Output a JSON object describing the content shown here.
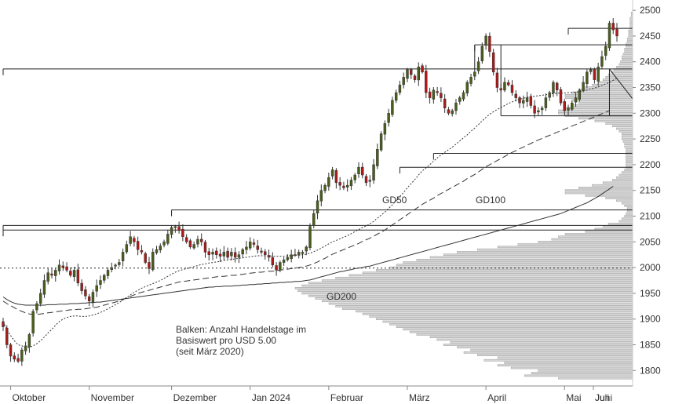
{
  "chart_data": {
    "type": "candlestick",
    "title": "",
    "xlabel": "",
    "ylabel": "",
    "ylim": [
      1770,
      2520
    ],
    "y_ticks": [
      1800,
      1850,
      1900,
      1950,
      2000,
      2050,
      2100,
      2150,
      2200,
      2250,
      2300,
      2350,
      2400,
      2450,
      2500
    ],
    "x_tick_labels": [
      "Oktober",
      "November",
      "Dezember",
      "Jan 2024",
      "Februar",
      "März",
      "April",
      "Mai",
      "Juni",
      "Juli"
    ],
    "grid": false,
    "moving_averages": [
      {
        "name": "GD50",
        "style": "dotted"
      },
      {
        "name": "GD100",
        "style": "dashed"
      },
      {
        "name": "GD200",
        "style": "solid"
      }
    ],
    "dotted_level": 1999,
    "resistance_levels": [
      2465,
      2433,
      2386,
      2222,
      2195,
      2112,
      2082,
      2073
    ],
    "support_zone": [
      2295,
      2386
    ],
    "annotation": {
      "line1": "Balken: Anzahl Handelstage im",
      "line2": "Basiswert pro USD 5.00",
      "line3": "(seit März 2020)"
    },
    "closes": [
      1885,
      1850,
      1828,
      1822,
      1818,
      1840,
      1848,
      1870,
      1915,
      1930,
      1950,
      1975,
      1990,
      1985,
      1995,
      2005,
      2000,
      1995,
      1985,
      1995,
      1970,
      1955,
      1945,
      1935,
      1952,
      1965,
      1975,
      1985,
      1995,
      2000,
      2005,
      2010,
      2030,
      2045,
      2060,
      2050,
      2035,
      2030,
      2010,
      1998,
      2030,
      2035,
      2042,
      2050,
      2065,
      2078,
      2080,
      2072,
      2060,
      2050,
      2040,
      2045,
      2055,
      2050,
      2030,
      2025,
      2030,
      2025,
      2022,
      2030,
      2020,
      2030,
      2020,
      2025,
      2035,
      2040,
      2050,
      2045,
      2035,
      2030,
      2025,
      2020,
      2005,
      1995,
      2010,
      2015,
      2020,
      2025,
      2025,
      2030,
      2030,
      2040,
      2080,
      2105,
      2130,
      2150,
      2160,
      2175,
      2190,
      2165,
      2160,
      2155,
      2160,
      2170,
      2180,
      2195,
      2180,
      2165,
      2170,
      2200,
      2230,
      2260,
      2280,
      2300,
      2325,
      2340,
      2355,
      2370,
      2385,
      2375,
      2365,
      2390,
      2380,
      2340,
      2330,
      2345,
      2340,
      2330,
      2310,
      2300,
      2305,
      2320,
      2330,
      2340,
      2360,
      2370,
      2380,
      2400,
      2430,
      2450,
      2420,
      2380,
      2350,
      2345,
      2360,
      2355,
      2340,
      2330,
      2320,
      2325,
      2330,
      2315,
      2300,
      2305,
      2310,
      2330,
      2340,
      2360,
      2345,
      2320,
      2305,
      2310,
      2320,
      2330,
      2345,
      2360,
      2380,
      2385,
      2365,
      2390,
      2410,
      2430,
      2475,
      2462,
      2450
    ],
    "gd50": [
      1895,
      1880,
      1868,
      1858,
      1850,
      1848,
      1845,
      1845,
      1848,
      1852,
      1858,
      1865,
      1873,
      1880,
      1888,
      1895,
      1900,
      1903,
      1905,
      1906,
      1906,
      1905,
      1905,
      1906,
      1908,
      1910,
      1913,
      1916,
      1920,
      1924,
      1928,
      1932,
      1937,
      1942,
      1947,
      1952,
      1956,
      1960,
      1963,
      1966,
      1969,
      1972,
      1975,
      1979,
      1983,
      1987,
      1991,
      1994,
      1996,
      1998,
      2000,
      2002,
      2004,
      2006,
      2007,
      2009,
      2010,
      2011,
      2012,
      2014,
      2015,
      2016,
      2017,
      2018,
      2019,
      2020,
      2021,
      2022,
      2023,
      2023,
      2023,
      2023,
      2022,
      2022,
      2022,
      2022,
      2023,
      2023,
      2024,
      2024,
      2025,
      2026,
      2028,
      2031,
      2034,
      2038,
      2042,
      2046,
      2050,
      2053,
      2056,
      2059,
      2062,
      2066,
      2070,
      2074,
      2078,
      2081,
      2085,
      2090,
      2096,
      2102,
      2108,
      2115,
      2122,
      2130,
      2138,
      2146,
      2155,
      2163,
      2171,
      2180,
      2188,
      2194,
      2200,
      2207,
      2213,
      2219,
      2224,
      2229,
      2234,
      2240,
      2246,
      2252,
      2258,
      2265,
      2271,
      2278,
      2285,
      2292,
      2298,
      2303,
      2307,
      2311,
      2315,
      2319,
      2322,
      2325,
      2327,
      2329,
      2331,
      2332,
      2333,
      2334,
      2335,
      2336,
      2337,
      2338,
      2339,
      2339,
      2339,
      2340,
      2340,
      2341,
      2342,
      2343,
      2345,
      2347,
      2349,
      2351,
      2354,
      2357,
      2360,
      2364,
      2368
    ],
    "gd100": [
      1935,
      1930,
      1926,
      1922,
      1918,
      1915,
      1912,
      1910,
      1909,
      1909,
      1910,
      1911,
      1912,
      1913,
      1914,
      1915,
      1916,
      1917,
      1918,
      1918,
      1919,
      1919,
      1920,
      1921,
      1922,
      1923,
      1925,
      1927,
      1929,
      1931,
      1933,
      1935,
      1938,
      1941,
      1944,
      1947,
      1950,
      1952,
      1954,
      1956,
      1958,
      1960,
      1962,
      1964,
      1966,
      1968,
      1970,
      1972,
      1973,
      1974,
      1975,
      1976,
      1977,
      1978,
      1979,
      1980,
      1981,
      1982,
      1983,
      1983,
      1984,
      1985,
      1985,
      1986,
      1987,
      1988,
      1989,
      1990,
      1991,
      1991,
      1992,
      1993,
      1993,
      1994,
      1995,
      1996,
      1997,
      1998,
      1999,
      2000,
      2001,
      2003,
      2005,
      2008,
      2011,
      2015,
      2018,
      2022,
      2026,
      2029,
      2032,
      2035,
      2038,
      2041,
      2044,
      2047,
      2051,
      2054,
      2057,
      2061,
      2065,
      2069,
      2073,
      2078,
      2083,
      2088,
      2093,
      2098,
      2103,
      2108,
      2113,
      2118,
      2123,
      2127,
      2131,
      2135,
      2140,
      2144,
      2148,
      2152,
      2156,
      2160,
      2164,
      2168,
      2173,
      2177,
      2181,
      2186,
      2191,
      2196,
      2200,
      2204,
      2208,
      2212,
      2216,
      2220,
      2224,
      2227,
      2231,
      2234,
      2238,
      2241,
      2245,
      2248,
      2251,
      2254,
      2257,
      2260,
      2263,
      2266,
      2269,
      2272,
      2275,
      2278,
      2281,
      2284,
      2287,
      2290,
      2293,
      2296,
      2299,
      2302,
      2305
    ],
    "gd200": [
      1943,
      1938,
      1934,
      1931,
      1929,
      1928,
      1927,
      1927,
      1927,
      1927,
      1927,
      1927,
      1928,
      1928,
      1928,
      1929,
      1929,
      1929,
      1930,
      1930,
      1930,
      1931,
      1931,
      1932,
      1932,
      1933,
      1933,
      1934,
      1935,
      1936,
      1937,
      1938,
      1939,
      1940,
      1941,
      1942,
      1943,
      1944,
      1945,
      1946,
      1947,
      1948,
      1949,
      1950,
      1951,
      1952,
      1953,
      1954,
      1955,
      1956,
      1957,
      1958,
      1959,
      1960,
      1961,
      1962,
      1962,
      1963,
      1963,
      1964,
      1964,
      1964,
      1965,
      1965,
      1966,
      1966,
      1967,
      1967,
      1968,
      1968,
      1969,
      1969,
      1970,
      1970,
      1971,
      1971,
      1972,
      1972,
      1973,
      1973,
      1974,
      1975,
      1976,
      1978,
      1980,
      1982,
      1984,
      1986,
      1988,
      1990,
      1992,
      1993,
      1995,
      1996,
      1998,
      1999,
      2000,
      2002,
      2003,
      2005,
      2007,
      2009,
      2011,
      2013,
      2015,
      2017,
      2019,
      2021,
      2023,
      2025,
      2027,
      2029,
      2031,
      2033,
      2035,
      2037,
      2039,
      2041,
      2043,
      2045,
      2047,
      2049,
      2051,
      2053,
      2055,
      2057,
      2059,
      2061,
      2063,
      2065,
      2067,
      2069,
      2071,
      2073,
      2075,
      2077,
      2079,
      2081,
      2083,
      2085,
      2087,
      2089,
      2091,
      2093,
      2095,
      2097,
      2099,
      2101,
      2103,
      2105,
      2108,
      2111,
      2114,
      2117,
      2120,
      2123,
      2126,
      2130,
      2134,
      2138,
      2143,
      2148,
      2153,
      2158
    ],
    "volume_profile": [
      [
        1785,
        55
      ],
      [
        1790,
        80
      ],
      [
        1795,
        75
      ],
      [
        1800,
        70
      ],
      [
        1805,
        90
      ],
      [
        1810,
        100
      ],
      [
        1815,
        95
      ],
      [
        1820,
        110
      ],
      [
        1825,
        100
      ],
      [
        1830,
        115
      ],
      [
        1835,
        125
      ],
      [
        1840,
        120
      ],
      [
        1845,
        130
      ],
      [
        1850,
        140
      ],
      [
        1855,
        135
      ],
      [
        1860,
        145
      ],
      [
        1865,
        150
      ],
      [
        1870,
        160
      ],
      [
        1875,
        165
      ],
      [
        1880,
        170
      ],
      [
        1885,
        175
      ],
      [
        1890,
        180
      ],
      [
        1895,
        185
      ],
      [
        1900,
        190
      ],
      [
        1905,
        195
      ],
      [
        1910,
        200
      ],
      [
        1915,
        205
      ],
      [
        1920,
        215
      ],
      [
        1925,
        220
      ],
      [
        1930,
        225
      ],
      [
        1935,
        230
      ],
      [
        1940,
        235
      ],
      [
        1945,
        240
      ],
      [
        1950,
        245
      ],
      [
        1955,
        248
      ],
      [
        1960,
        250
      ],
      [
        1965,
        245
      ],
      [
        1970,
        240
      ],
      [
        1975,
        230
      ],
      [
        1980,
        220
      ],
      [
        1985,
        210
      ],
      [
        1990,
        200
      ],
      [
        1995,
        190
      ],
      [
        2000,
        180
      ],
      [
        2005,
        175
      ],
      [
        2010,
        170
      ],
      [
        2015,
        160
      ],
      [
        2020,
        150
      ],
      [
        2025,
        140
      ],
      [
        2030,
        130
      ],
      [
        2035,
        115
      ],
      [
        2040,
        100
      ],
      [
        2045,
        85
      ],
      [
        2050,
        70
      ],
      [
        2055,
        60
      ],
      [
        2060,
        55
      ],
      [
        2065,
        50
      ],
      [
        2070,
        35
      ],
      [
        2075,
        28
      ],
      [
        2080,
        22
      ],
      [
        2085,
        18
      ],
      [
        2090,
        10
      ],
      [
        2095,
        8
      ],
      [
        2100,
        6
      ],
      [
        2105,
        5
      ],
      [
        2110,
        4
      ],
      [
        2115,
        4
      ],
      [
        2120,
        6
      ],
      [
        2125,
        8
      ],
      [
        2130,
        12
      ],
      [
        2135,
        20
      ],
      [
        2140,
        35
      ],
      [
        2145,
        50
      ],
      [
        2150,
        50
      ],
      [
        2155,
        40
      ],
      [
        2160,
        30
      ],
      [
        2165,
        22
      ],
      [
        2170,
        15
      ],
      [
        2175,
        12
      ],
      [
        2180,
        10
      ],
      [
        2185,
        8
      ],
      [
        2190,
        6
      ],
      [
        2195,
        5
      ],
      [
        2200,
        5
      ],
      [
        2205,
        5
      ],
      [
        2210,
        5
      ],
      [
        2215,
        5
      ],
      [
        2220,
        5
      ],
      [
        2225,
        5
      ],
      [
        2230,
        5
      ],
      [
        2235,
        6
      ],
      [
        2240,
        6
      ],
      [
        2245,
        7
      ],
      [
        2250,
        8
      ],
      [
        2255,
        8
      ],
      [
        2260,
        8
      ],
      [
        2265,
        10
      ],
      [
        2270,
        12
      ],
      [
        2275,
        15
      ],
      [
        2280,
        20
      ],
      [
        2285,
        28
      ],
      [
        2290,
        40
      ],
      [
        2295,
        50
      ],
      [
        2300,
        55
      ],
      [
        2305,
        55
      ],
      [
        2310,
        50
      ],
      [
        2315,
        45
      ],
      [
        2320,
        40
      ],
      [
        2325,
        45
      ],
      [
        2330,
        50
      ],
      [
        2335,
        50
      ],
      [
        2340,
        45
      ],
      [
        2345,
        40
      ],
      [
        2350,
        35
      ],
      [
        2355,
        30
      ],
      [
        2360,
        25
      ],
      [
        2365,
        22
      ],
      [
        2370,
        20
      ],
      [
        2375,
        18
      ],
      [
        2380,
        16
      ],
      [
        2385,
        14
      ],
      [
        2390,
        12
      ],
      [
        2395,
        10
      ],
      [
        2400,
        9
      ],
      [
        2405,
        8
      ],
      [
        2410,
        8
      ],
      [
        2415,
        7
      ],
      [
        2420,
        6
      ],
      [
        2425,
        6
      ],
      [
        2430,
        5
      ],
      [
        2435,
        5
      ],
      [
        2440,
        4
      ],
      [
        2445,
        4
      ],
      [
        2450,
        3
      ],
      [
        2455,
        3
      ],
      [
        2460,
        3
      ],
      [
        2465,
        2
      ],
      [
        2470,
        2
      ],
      [
        2475,
        2
      ],
      [
        2480,
        2
      ],
      [
        2485,
        2
      ],
      [
        2490,
        1
      ],
      [
        2495,
        1
      ]
    ]
  },
  "colors": {
    "up": "#4a5e1a",
    "down": "#b01818",
    "candle_outline": "#333333",
    "axis": "#888888",
    "volume_fill": "#d6d6d6",
    "volume_stroke": "#9a9a9a",
    "ma": "#333333",
    "level": "#222222"
  }
}
